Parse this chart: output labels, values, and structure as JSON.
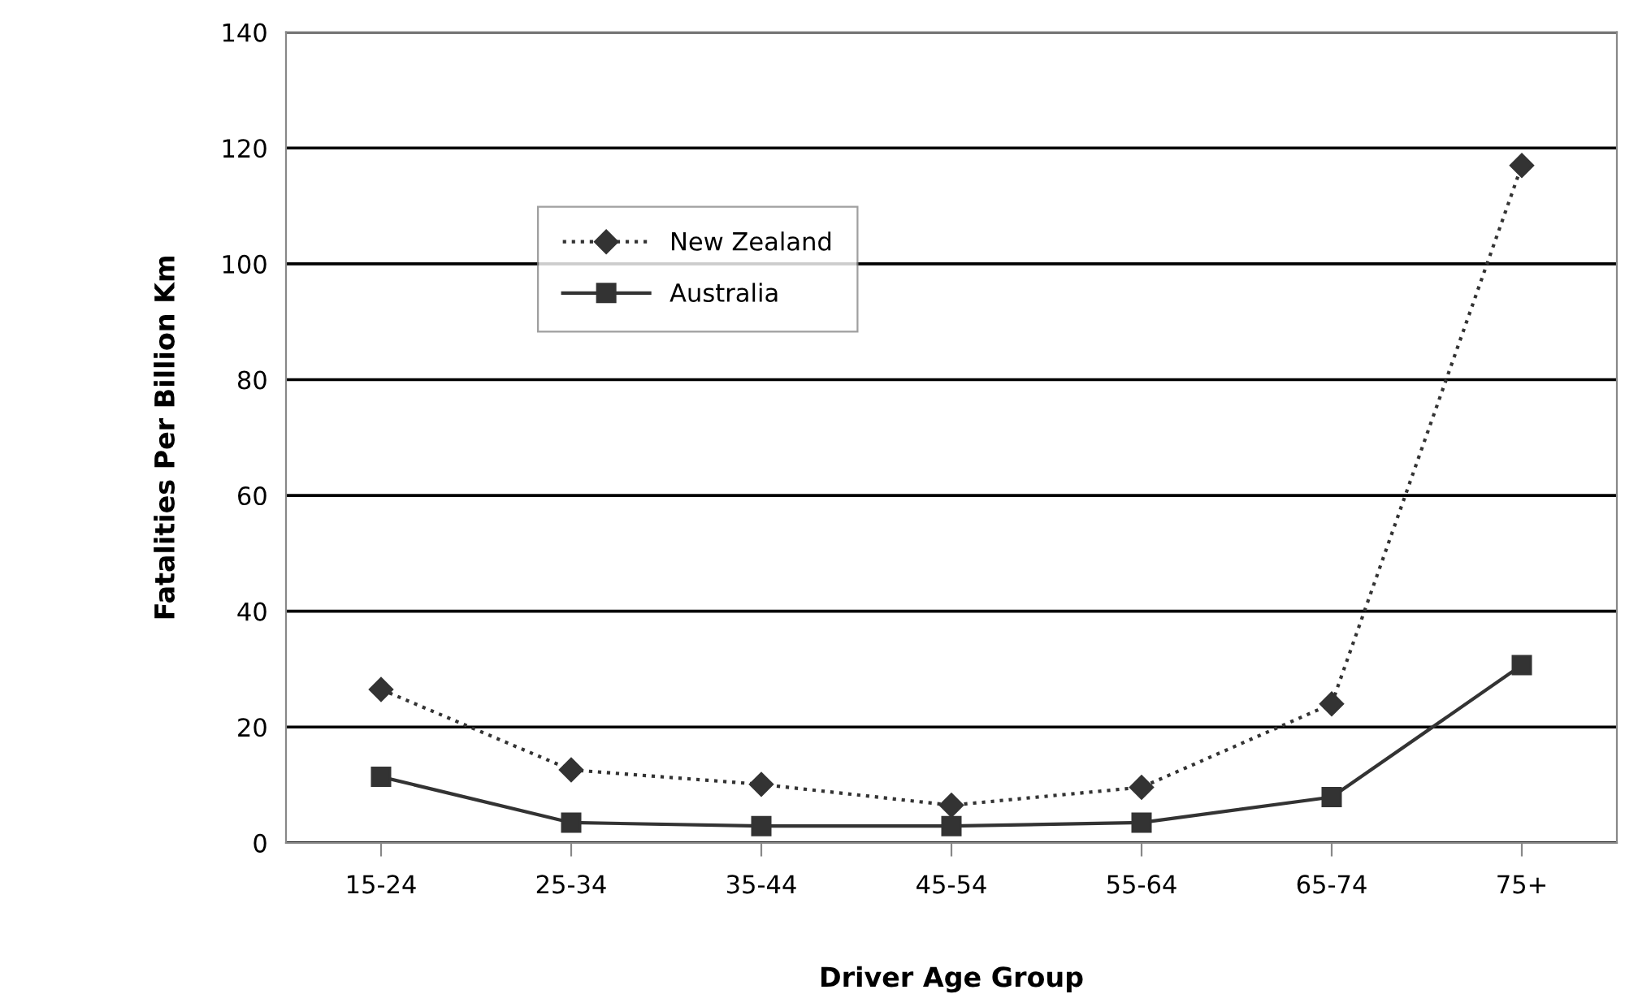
{
  "chart_data": {
    "type": "line",
    "xlabel": "Driver Age Group",
    "ylabel": "Fatalities Per Billion Km",
    "categories": [
      "15-24",
      "25-34",
      "35-44",
      "45-54",
      "55-64",
      "65-74",
      "75+"
    ],
    "series": [
      {
        "name": "New Zealand",
        "color": "#333333",
        "values": [
          26.5,
          12.6,
          10.1,
          6.5,
          9.6,
          24,
          117
        ],
        "marker": "diamond",
        "line_style": "dotted"
      },
      {
        "name": "Australia",
        "color": "#333333",
        "values": [
          11.4,
          3.5,
          2.9,
          2.9,
          3.5,
          7.9,
          30.7
        ],
        "marker": "square",
        "line_style": "solid"
      }
    ],
    "ylim": [
      0,
      140
    ],
    "yticks": [
      0,
      20,
      40,
      60,
      80,
      100,
      120,
      140
    ],
    "grid": "y",
    "legend": "top left"
  }
}
